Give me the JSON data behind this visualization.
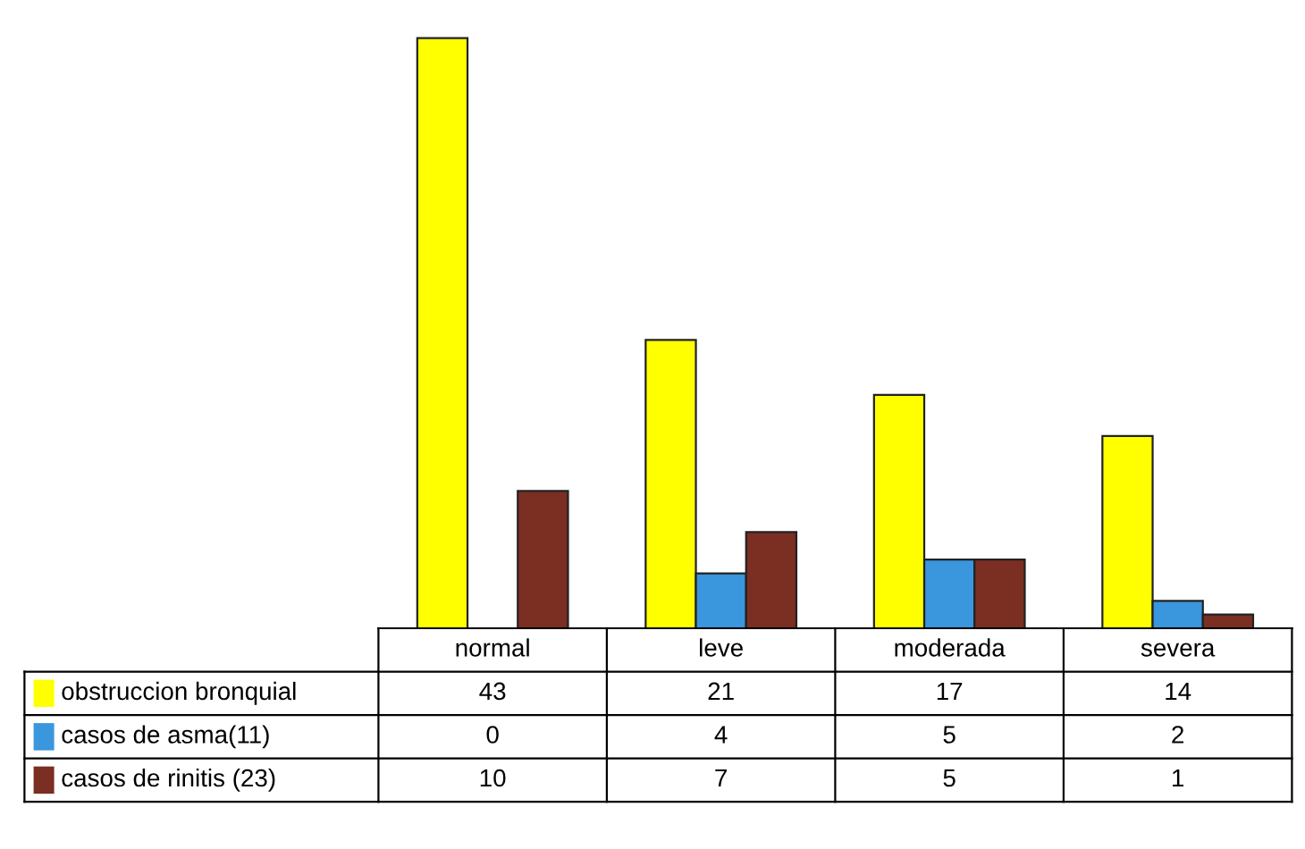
{
  "chart_data": {
    "type": "bar",
    "categories": [
      "normal",
      "leve",
      "moderada",
      "severa"
    ],
    "series": [
      {
        "name": "obstruccion bronquial",
        "color": "#ffff00",
        "values": [
          43,
          21,
          17,
          14
        ]
      },
      {
        "name": "casos de asma(11)",
        "color": "#3a96dd",
        "values": [
          0,
          4,
          5,
          2
        ]
      },
      {
        "name": "casos de rinitis (23)",
        "color": "#7b2e22",
        "values": [
          10,
          7,
          5,
          1
        ]
      }
    ],
    "data_labels": true,
    "legend": "bottom left"
  }
}
